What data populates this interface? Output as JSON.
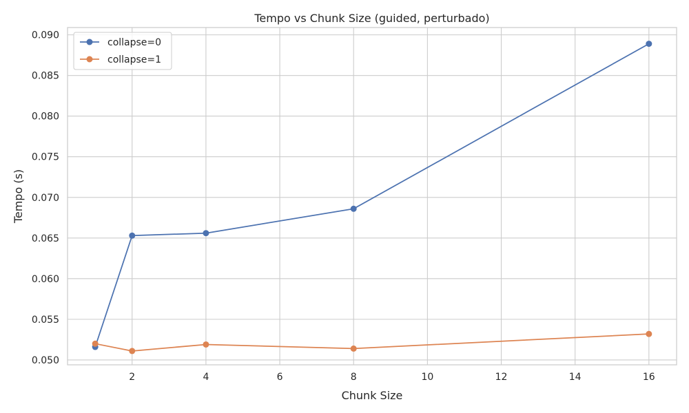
{
  "chart_data": {
    "type": "line",
    "title": "Tempo vs Chunk Size (guided, perturbado)",
    "xlabel": "Chunk Size",
    "ylabel": "Tempo (s)",
    "xlim": [
      0.25,
      16.75
    ],
    "ylim": [
      0.0494,
      0.0909
    ],
    "xticks": [
      2,
      4,
      6,
      8,
      10,
      12,
      14,
      16
    ],
    "xtick_labels": [
      "2",
      "4",
      "6",
      "8",
      "10",
      "12",
      "14",
      "16"
    ],
    "yticks": [
      0.05,
      0.055,
      0.06,
      0.065,
      0.07,
      0.075,
      0.08,
      0.085,
      0.09
    ],
    "ytick_labels": [
      "0.050",
      "0.055",
      "0.060",
      "0.065",
      "0.070",
      "0.075",
      "0.080",
      "0.085",
      "0.090"
    ],
    "grid": true,
    "legend_position": "top-left",
    "x": [
      1,
      2,
      4,
      8,
      16
    ],
    "series": [
      {
        "name": "collapse=0",
        "color": "#4c72b0",
        "values": [
          0.0516,
          0.0653,
          0.0656,
          0.0686,
          0.0889
        ]
      },
      {
        "name": "collapse=1",
        "color": "#dd8452",
        "values": [
          0.052,
          0.0511,
          0.0519,
          0.0514,
          0.0532
        ]
      }
    ]
  }
}
